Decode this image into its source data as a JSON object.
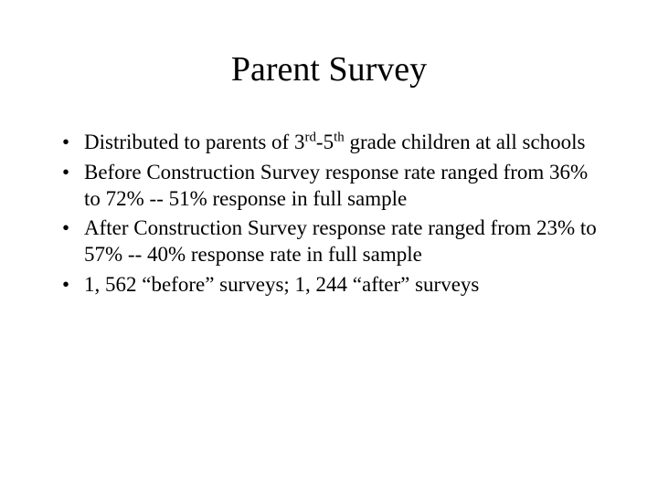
{
  "slide": {
    "title": "Parent Survey",
    "title_fontsize": 38,
    "body_fontsize": 23,
    "background_color": "#ffffff",
    "text_color": "#000000",
    "font_family": "Times New Roman",
    "bullets": [
      {
        "pre": "Distributed to parents of 3",
        "sup1": "rd",
        "mid": "-5",
        "sup2": "th",
        "post": " grade children at all schools"
      },
      {
        "text": "Before Construction Survey response rate ranged from 36% to 72% -- 51% response in full sample"
      },
      {
        "text": "After Construction Survey response rate ranged from 23% to 57% -- 40% response rate in full sample"
      },
      {
        "text": "1, 562 “before” surveys; 1, 244 “after” surveys"
      }
    ]
  }
}
